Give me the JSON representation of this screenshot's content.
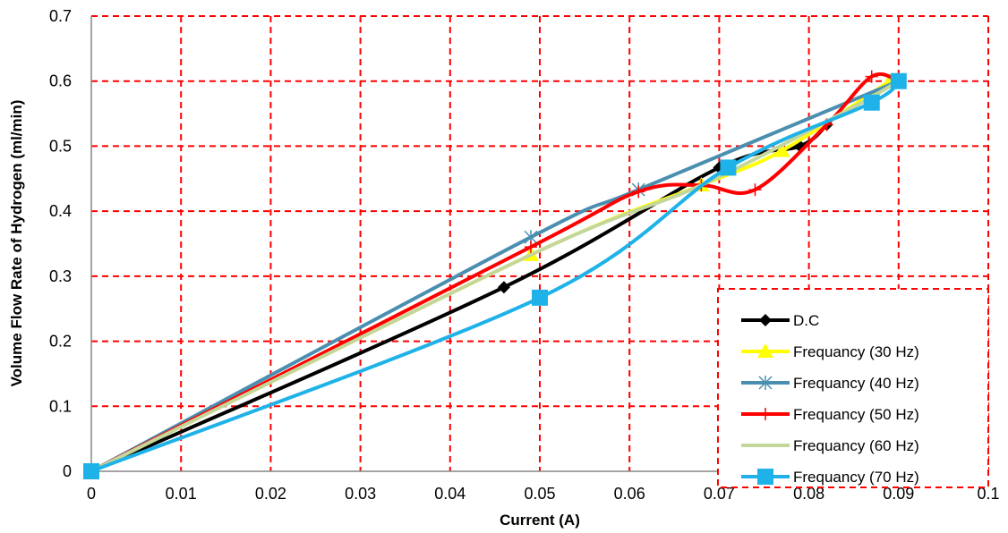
{
  "chart_data": {
    "type": "line",
    "title": "",
    "xlabel": "Current (A)",
    "ylabel": "Volume Flow Rate of Hydrogen (ml/min)",
    "xlim": [
      0,
      0.1
    ],
    "ylim": [
      0,
      0.7
    ],
    "xticks": [
      "0",
      "0.01",
      "0.02",
      "0.03",
      "0.04",
      "0.05",
      "0.06",
      "0.07",
      "0.08",
      "0.09",
      "0.1"
    ],
    "yticks": [
      "0",
      "0.1",
      "0.2",
      "0.3",
      "0.4",
      "0.5",
      "0.6",
      "0.7"
    ],
    "grid": true,
    "grid_color": "#ff0000",
    "legend_position": "bottom-right",
    "series": [
      {
        "name": "D.C",
        "color": "#000000",
        "marker": "diamond",
        "x": [
          0,
          0.046,
          0.07,
          0.079,
          0.082
        ],
        "y": [
          0,
          0.283,
          0.467,
          0.5,
          0.533
        ]
      },
      {
        "name": "Frequancy (30 Hz)",
        "color": "#ffff00",
        "marker": "triangle",
        "x": [
          0,
          0.049,
          0.068,
          0.077,
          0.089
        ],
        "y": [
          0,
          0.333,
          0.44,
          0.493,
          0.6
        ]
      },
      {
        "name": "Frequancy (40 Hz)",
        "color": "#4a8fb0",
        "marker": "asterisk",
        "x": [
          0,
          0.049,
          0.061,
          0.09
        ],
        "y": [
          0,
          0.36,
          0.433,
          0.6
        ]
      },
      {
        "name": "Frequancy (50 Hz)",
        "color": "#ff0000",
        "marker": "plus",
        "x": [
          0,
          0.049,
          0.061,
          0.068,
          0.074,
          0.082,
          0.087,
          0.09
        ],
        "y": [
          0,
          0.345,
          0.43,
          0.44,
          0.433,
          0.533,
          0.607,
          0.6
        ]
      },
      {
        "name": "Frequancy (60 Hz)",
        "color": "#c4d79b",
        "marker": "none",
        "x": [
          0,
          0.049,
          0.068,
          0.084,
          0.09
        ],
        "y": [
          0,
          0.333,
          0.44,
          0.553,
          0.6
        ]
      },
      {
        "name": "Frequancy (70 Hz)",
        "color": "#1fb2e8",
        "marker": "square",
        "x": [
          0,
          0.05,
          0.071,
          0.087,
          0.09
        ],
        "y": [
          0,
          0.267,
          0.467,
          0.567,
          0.6
        ]
      }
    ]
  }
}
